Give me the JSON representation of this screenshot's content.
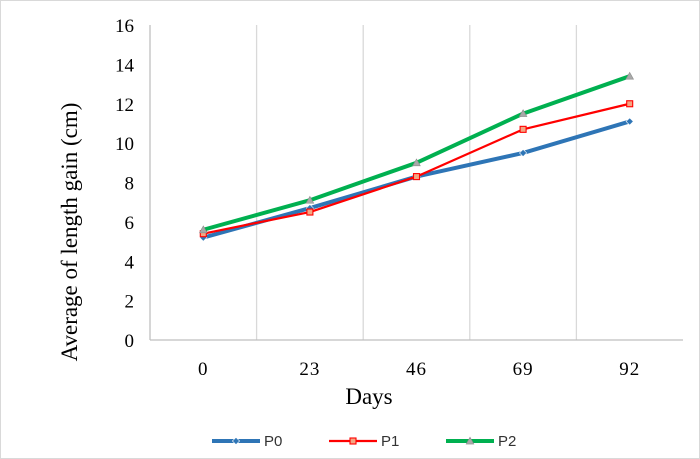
{
  "chart_data": {
    "type": "line",
    "title": "",
    "xlabel": "Days",
    "ylabel": "Average of length gain (cm)",
    "x": [
      "0",
      "23",
      "46",
      "69",
      "92"
    ],
    "ylim": [
      0,
      16
    ],
    "yticks": [
      0,
      2,
      4,
      6,
      8,
      10,
      12,
      14,
      16
    ],
    "grid": "vertical",
    "legend": "bottom",
    "series": [
      {
        "name": "P0",
        "values": [
          5.2,
          6.7,
          8.3,
          9.5,
          11.1
        ],
        "color": "#2e75b6",
        "marker": "diamond"
      },
      {
        "name": "P1",
        "values": [
          5.4,
          6.5,
          8.3,
          10.7,
          12.0
        ],
        "color": "#ff0000",
        "marker": "square"
      },
      {
        "name": "P2",
        "values": [
          5.6,
          7.1,
          9.0,
          11.5,
          13.4
        ],
        "color": "#00b050",
        "marker": "triangle"
      }
    ]
  }
}
